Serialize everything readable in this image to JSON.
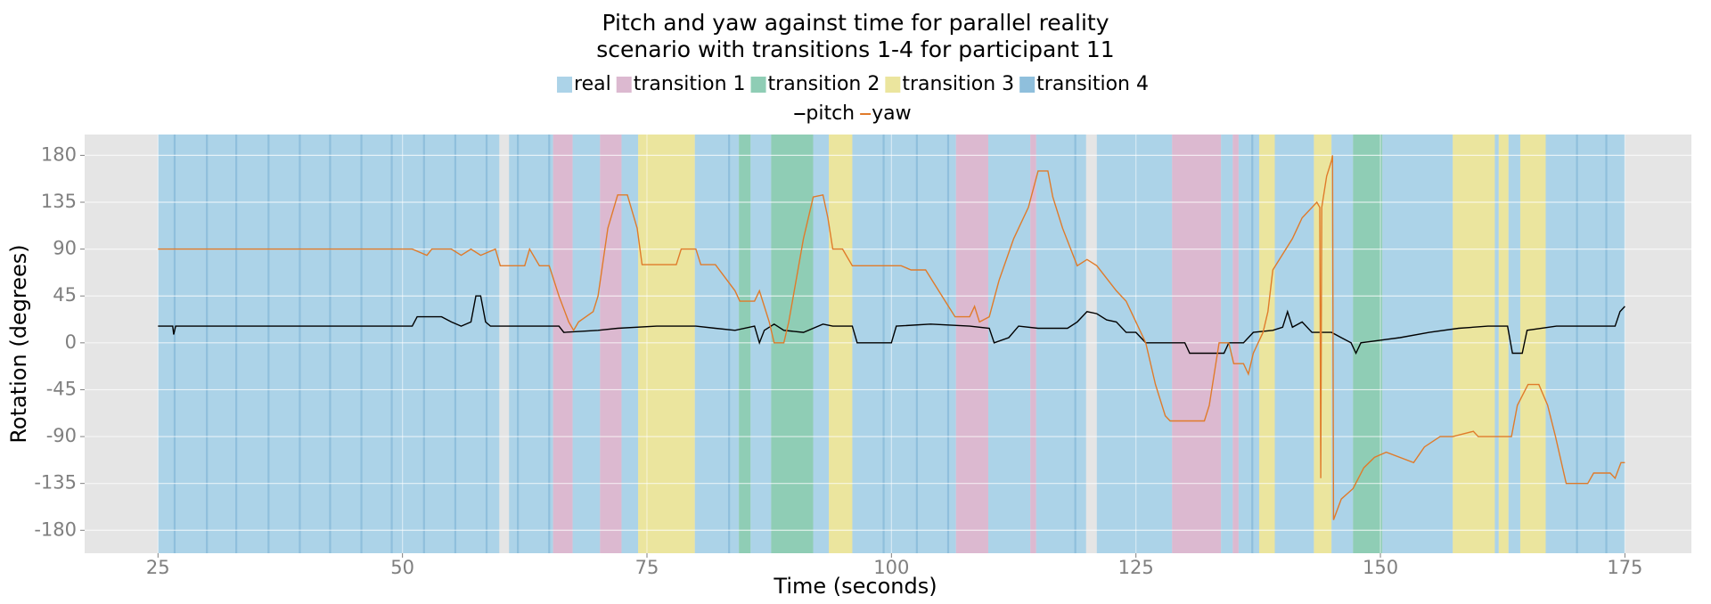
{
  "chart_data": {
    "type": "line",
    "title": [
      "Pitch and yaw against time for parallel reality",
      "scenario with transitions 1-4 for participant 11"
    ],
    "x_label": "Time (seconds)",
    "y_label": "Rotation (degrees)",
    "xlim": [
      17.5,
      181.8
    ],
    "ylim": [
      -202,
      200
    ],
    "xticks": [
      25,
      50,
      75,
      100,
      125,
      150,
      175
    ],
    "yticks": [
      -180,
      -135,
      -90,
      -45,
      0,
      45,
      90,
      135,
      180
    ],
    "grid": true,
    "band_series": [
      {
        "name": "real",
        "color": "#acd3e8"
      },
      {
        "name": "transition 1",
        "color": "#dcb9d0"
      },
      {
        "name": "transition 2",
        "color": "#8fcdb5"
      },
      {
        "name": "transition 3",
        "color": "#ebe59e"
      },
      {
        "name": "transition 4",
        "color": "#8fbfdc"
      }
    ],
    "bands": [
      {
        "start": 25,
        "end": 59.9,
        "category": "real"
      },
      {
        "start": 60.9,
        "end": 65.4,
        "category": "real"
      },
      {
        "start": 65.4,
        "end": 67.4,
        "category": "transition 1"
      },
      {
        "start": 67.4,
        "end": 70.2,
        "category": "real"
      },
      {
        "start": 70.2,
        "end": 72.4,
        "category": "transition 1"
      },
      {
        "start": 72.4,
        "end": 74.1,
        "category": "real"
      },
      {
        "start": 74.1,
        "end": 79.9,
        "category": "transition 3"
      },
      {
        "start": 79.9,
        "end": 84.4,
        "category": "real"
      },
      {
        "start": 84.4,
        "end": 85.6,
        "category": "transition 2"
      },
      {
        "start": 85.6,
        "end": 87.7,
        "category": "real"
      },
      {
        "start": 87.7,
        "end": 92.0,
        "category": "transition 2"
      },
      {
        "start": 92.0,
        "end": 93.6,
        "category": "real"
      },
      {
        "start": 93.6,
        "end": 96.0,
        "category": "transition 3"
      },
      {
        "start": 96.0,
        "end": 106.6,
        "category": "real"
      },
      {
        "start": 106.6,
        "end": 109.9,
        "category": "transition 1"
      },
      {
        "start": 109.9,
        "end": 114.2,
        "category": "real"
      },
      {
        "start": 114.2,
        "end": 114.8,
        "category": "transition 1"
      },
      {
        "start": 114.8,
        "end": 119.9,
        "category": "real"
      },
      {
        "start": 121.0,
        "end": 128.7,
        "category": "real"
      },
      {
        "start": 128.7,
        "end": 133.7,
        "category": "transition 1"
      },
      {
        "start": 133.7,
        "end": 134.9,
        "category": "real"
      },
      {
        "start": 134.9,
        "end": 135.5,
        "category": "transition 1"
      },
      {
        "start": 135.5,
        "end": 137.6,
        "category": "real"
      },
      {
        "start": 137.6,
        "end": 139.2,
        "category": "transition 3"
      },
      {
        "start": 139.2,
        "end": 143.2,
        "category": "real"
      },
      {
        "start": 143.2,
        "end": 145.0,
        "category": "transition 3"
      },
      {
        "start": 145.0,
        "end": 147.2,
        "category": "real"
      },
      {
        "start": 147.2,
        "end": 150.2,
        "category": "transition 2"
      },
      {
        "start": 150.2,
        "end": 157.4,
        "category": "real"
      },
      {
        "start": 157.4,
        "end": 161.7,
        "category": "transition 3"
      },
      {
        "start": 161.7,
        "end": 162.1,
        "category": "real"
      },
      {
        "start": 162.1,
        "end": 163.1,
        "category": "transition 3"
      },
      {
        "start": 163.1,
        "end": 164.3,
        "category": "real"
      },
      {
        "start": 164.3,
        "end": 166.9,
        "category": "transition 3"
      },
      {
        "start": 166.9,
        "end": 175.0,
        "category": "real"
      },
      {
        "start": 26.6,
        "end": 26.8,
        "category": "transition 4"
      },
      {
        "start": 29.9,
        "end": 30.1,
        "category": "transition 4"
      },
      {
        "start": 32.9,
        "end": 33.1,
        "category": "transition 4"
      },
      {
        "start": 36.2,
        "end": 36.4,
        "category": "transition 4"
      },
      {
        "start": 39.4,
        "end": 39.6,
        "category": "transition 4"
      },
      {
        "start": 42.5,
        "end": 42.7,
        "category": "transition 4"
      },
      {
        "start": 45.7,
        "end": 45.9,
        "category": "transition 4"
      },
      {
        "start": 48.8,
        "end": 49.0,
        "category": "transition 4"
      },
      {
        "start": 52.1,
        "end": 52.3,
        "category": "transition 4"
      },
      {
        "start": 55.3,
        "end": 55.5,
        "category": "transition 4"
      },
      {
        "start": 58.5,
        "end": 58.7,
        "category": "transition 4"
      },
      {
        "start": 61.7,
        "end": 61.9,
        "category": "transition 4"
      },
      {
        "start": 64.9,
        "end": 65.1,
        "category": "transition 4"
      },
      {
        "start": 83.3,
        "end": 83.5,
        "category": "transition 4"
      },
      {
        "start": 99.1,
        "end": 99.3,
        "category": "transition 4"
      },
      {
        "start": 102.5,
        "end": 102.7,
        "category": "transition 4"
      },
      {
        "start": 105.7,
        "end": 105.9,
        "category": "transition 4"
      },
      {
        "start": 118.7,
        "end": 118.9,
        "category": "transition 4"
      },
      {
        "start": 136.8,
        "end": 137.0,
        "category": "transition 4"
      },
      {
        "start": 170.0,
        "end": 170.2,
        "category": "transition 4"
      },
      {
        "start": 173.0,
        "end": 173.2,
        "category": "transition 4"
      }
    ],
    "series": [
      {
        "name": "pitch",
        "color": "#000000",
        "x": [
          25,
          26.5,
          26.6,
          26.8,
          51,
          51.5,
          54,
          55,
          56,
          57,
          57.5,
          58,
          58.5,
          59,
          66,
          66.5,
          70,
          72,
          76,
          80,
          82,
          84,
          86,
          86.5,
          87,
          88,
          89,
          91,
          93,
          94,
          96,
          96.5,
          100,
          100.5,
          104,
          108,
          110,
          110.5,
          112,
          113,
          115,
          118,
          119,
          120,
          121,
          122,
          123,
          124,
          125,
          126,
          130,
          130.5,
          134,
          134.5,
          136,
          137,
          139,
          140,
          140.5,
          141,
          142,
          143,
          145,
          146,
          147,
          147.5,
          148,
          152,
          155,
          158,
          161,
          163,
          163.5,
          164.5,
          165,
          168,
          174,
          174.5,
          175
        ],
        "values": [
          16,
          16,
          8,
          16,
          16,
          25,
          25,
          20,
          16,
          20,
          45,
          45,
          20,
          16,
          16,
          10,
          12,
          14,
          16,
          16,
          14,
          12,
          16,
          0,
          12,
          18,
          12,
          10,
          18,
          16,
          16,
          0,
          0,
          16,
          18,
          16,
          14,
          0,
          5,
          16,
          14,
          14,
          20,
          30,
          28,
          22,
          20,
          10,
          10,
          0,
          0,
          -10,
          -10,
          0,
          0,
          10,
          12,
          15,
          30,
          15,
          20,
          10,
          10,
          5,
          0,
          -10,
          0,
          5,
          10,
          14,
          16,
          16,
          -10,
          -10,
          12,
          16,
          16,
          30,
          35
        ]
      },
      {
        "name": "yaw",
        "color": "#e07b2a",
        "x": [
          25,
          51,
          52.5,
          53,
          55,
          56,
          57,
          58,
          59.5,
          60,
          62.5,
          63,
          64,
          65,
          66,
          67,
          67.5,
          68,
          69.5,
          70,
          71,
          72,
          73,
          74,
          74.5,
          78,
          78.5,
          80,
          80.5,
          82,
          84,
          84.5,
          86,
          86.5,
          87.5,
          88,
          89,
          89.5,
          91,
          92,
          93,
          93.5,
          94,
          95,
          96,
          101,
          102,
          103.5,
          105.5,
          106.5,
          108,
          108.5,
          109,
          110,
          111,
          112.5,
          114,
          115,
          116,
          116.5,
          117.5,
          119,
          120,
          121,
          123,
          124,
          125,
          126,
          127,
          128,
          128.5,
          132,
          132.5,
          133.5,
          134.5,
          135,
          136,
          136.5,
          137,
          138,
          138.5,
          139,
          141,
          142,
          143.5,
          143.8,
          143.9,
          144.0,
          144.5,
          145,
          145.1,
          145.2,
          146,
          147.2,
          148.3,
          149.4,
          150.6,
          153.4,
          154.5,
          156.1,
          157.4,
          159.5,
          160.0,
          163.4,
          164.0,
          165.1,
          166.2,
          167.1,
          167.9,
          169.0,
          171.2,
          171.8,
          173.5,
          174.0,
          174.6,
          175
        ],
        "values": [
          90,
          90,
          84,
          90,
          90,
          84,
          90,
          84,
          90,
          74,
          74,
          90,
          74,
          74,
          45,
          20,
          12,
          20,
          30,
          45,
          110,
          142,
          142,
          110,
          75,
          75,
          90,
          90,
          75,
          75,
          50,
          40,
          40,
          50,
          20,
          0,
          0,
          20,
          100,
          140,
          142,
          120,
          90,
          90,
          74,
          74,
          70,
          70,
          40,
          25,
          25,
          35,
          20,
          25,
          60,
          100,
          130,
          165,
          165,
          140,
          110,
          74,
          80,
          74,
          50,
          40,
          20,
          0,
          -40,
          -70,
          -75,
          -75,
          -60,
          0,
          0,
          -20,
          -20,
          -30,
          -10,
          10,
          30,
          70,
          100,
          120,
          135,
          130,
          -130,
          130,
          160,
          175,
          180,
          -170,
          -150,
          -140,
          -120,
          -110,
          -105,
          -115,
          -100,
          -90,
          -90,
          -85,
          -90,
          -90,
          -60,
          -40,
          -40,
          -60,
          -90,
          -135,
          -135,
          -125,
          -125,
          -130,
          -115,
          -115
        ]
      }
    ]
  }
}
